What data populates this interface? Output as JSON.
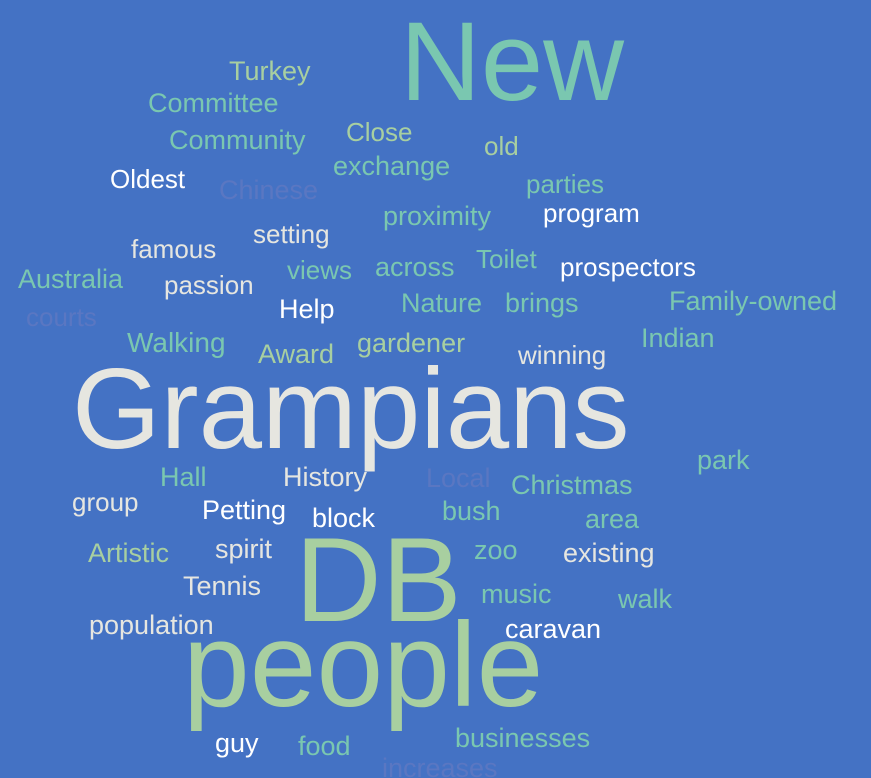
{
  "background": "#4472C4",
  "palette": {
    "teal": "#7AC7B0",
    "sage": "#A8CFA0",
    "light": "#E6E6E0",
    "white": "#FFFFFF",
    "muted": "#5A77C2"
  },
  "words": [
    {
      "text": "New",
      "color": "teal"
    },
    {
      "text": "Turkey",
      "color": "sage"
    },
    {
      "text": "Committee",
      "color": "teal"
    },
    {
      "text": "Community",
      "color": "teal"
    },
    {
      "text": "Close",
      "color": "sage"
    },
    {
      "text": "old",
      "color": "sage"
    },
    {
      "text": "exchange",
      "color": "teal"
    },
    {
      "text": "Oldest",
      "color": "white"
    },
    {
      "text": "Chinese",
      "color": "muted"
    },
    {
      "text": "parties",
      "color": "teal"
    },
    {
      "text": "proximity",
      "color": "teal"
    },
    {
      "text": "program",
      "color": "white"
    },
    {
      "text": "setting",
      "color": "light"
    },
    {
      "text": "famous",
      "color": "light"
    },
    {
      "text": "Australia",
      "color": "teal"
    },
    {
      "text": "passion",
      "color": "light"
    },
    {
      "text": "views",
      "color": "teal"
    },
    {
      "text": "across",
      "color": "teal"
    },
    {
      "text": "Toilet",
      "color": "teal"
    },
    {
      "text": "prospectors",
      "color": "white"
    },
    {
      "text": "courts",
      "color": "muted"
    },
    {
      "text": "Help",
      "color": "white"
    },
    {
      "text": "Nature",
      "color": "teal"
    },
    {
      "text": "brings",
      "color": "teal"
    },
    {
      "text": "Family-owned",
      "color": "teal"
    },
    {
      "text": "Walking",
      "color": "teal"
    },
    {
      "text": "Award",
      "color": "sage"
    },
    {
      "text": "gardener",
      "color": "sage"
    },
    {
      "text": "winning",
      "color": "light"
    },
    {
      "text": "Indian",
      "color": "teal"
    },
    {
      "text": "Grampians",
      "color": "light"
    },
    {
      "text": "park",
      "color": "teal"
    },
    {
      "text": "Hall",
      "color": "teal"
    },
    {
      "text": "History",
      "color": "light"
    },
    {
      "text": "Local",
      "color": "muted"
    },
    {
      "text": "Christmas",
      "color": "teal"
    },
    {
      "text": "group",
      "color": "light"
    },
    {
      "text": "Petting",
      "color": "white"
    },
    {
      "text": "block",
      "color": "white"
    },
    {
      "text": "bush",
      "color": "teal"
    },
    {
      "text": "area",
      "color": "teal"
    },
    {
      "text": "Artistic",
      "color": "sage"
    },
    {
      "text": "spirit",
      "color": "light"
    },
    {
      "text": "DB",
      "color": "sage"
    },
    {
      "text": "zoo",
      "color": "teal"
    },
    {
      "text": "existing",
      "color": "light"
    },
    {
      "text": "Tennis",
      "color": "light"
    },
    {
      "text": "music",
      "color": "teal"
    },
    {
      "text": "walk",
      "color": "teal"
    },
    {
      "text": "population",
      "color": "light"
    },
    {
      "text": "caravan",
      "color": "white"
    },
    {
      "text": "people",
      "color": "sage"
    },
    {
      "text": "guy",
      "color": "white"
    },
    {
      "text": "food",
      "color": "teal"
    },
    {
      "text": "businesses",
      "color": "teal"
    },
    {
      "text": "increases",
      "color": "muted"
    }
  ]
}
